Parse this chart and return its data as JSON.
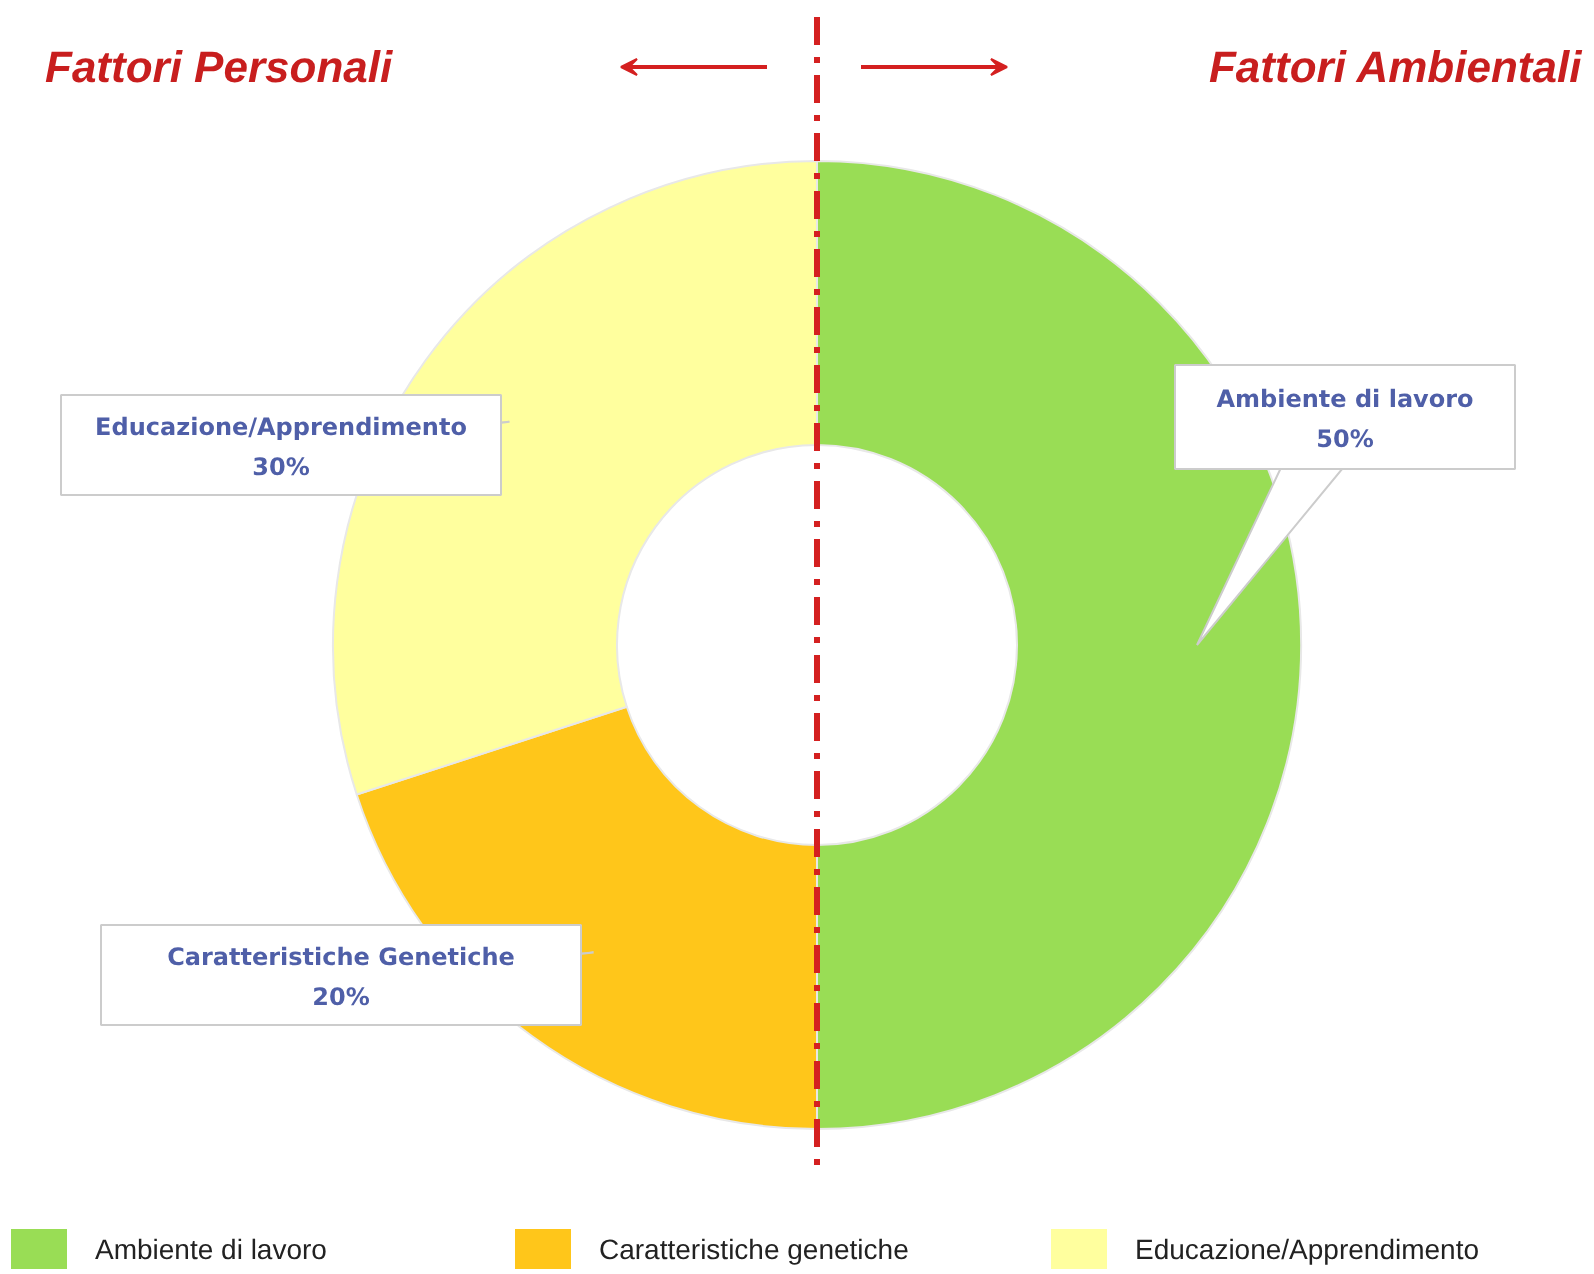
{
  "chart_data": {
    "type": "donut",
    "categories": [
      "Ambiente di lavoro",
      "Caratteristiche genetiche",
      "Educazione/Apprendimento"
    ],
    "values": [
      50,
      20,
      30
    ],
    "colors": [
      "#99dd55",
      "#ffc61a",
      "#ffff9e"
    ],
    "value_labels": [
      "Ambiente di lavoro\n50%",
      "Caratteristiche Genetiche\n20%",
      "Educazione/Apprendimento\n30%"
    ],
    "legend": "bottom",
    "annotations": [
      "Fattori Personali",
      "Fattori Ambientali"
    ]
  }
}
